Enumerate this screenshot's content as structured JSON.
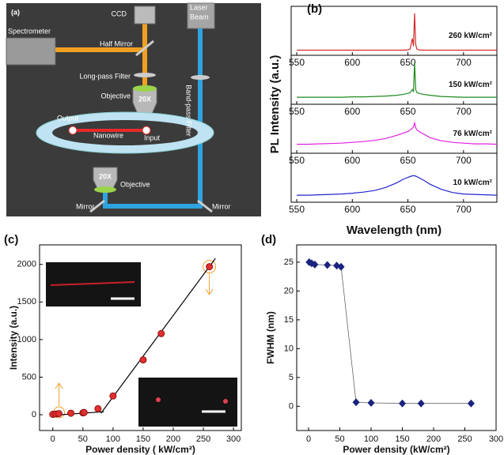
{
  "diagram": {
    "panel_label": "(a)",
    "labels": [
      "CCD",
      "Laser",
      "Beam",
      "Spectrometer",
      "Half Mirror",
      "Long-pass Filter",
      "Objective",
      "20X",
      "Output",
      "Nanowire",
      "Input",
      "Band-pass Filter",
      "20X",
      "Objective",
      "Mirror",
      "Mirror"
    ]
  },
  "chart_data": [
    {
      "type": "ridgeline",
      "panel_label": "(b)",
      "ylabel": "PL Intensity (a.u.)",
      "xlabel": "Wavelength (nm)",
      "x": [
        550,
        560,
        570,
        580,
        590,
        600,
        610,
        620,
        630,
        640,
        645,
        650,
        652,
        654,
        655,
        656,
        657,
        658,
        660,
        665,
        670,
        680,
        690,
        700,
        710,
        720,
        730
      ],
      "xlim": [
        545,
        730
      ],
      "xticks": [
        550,
        600,
        650,
        700
      ],
      "ylim": [
        0,
        1.1
      ],
      "series": [
        {
          "name": "260 kW/cm²",
          "color": "#d42a2a",
          "values": [
            0.05,
            0.05,
            0.05,
            0.05,
            0.05,
            0.05,
            0.05,
            0.05,
            0.05,
            0.05,
            0.05,
            0.06,
            0.08,
            0.35,
            0.15,
            1.0,
            0.2,
            0.08,
            0.06,
            0.05,
            0.05,
            0.05,
            0.05,
            0.05,
            0.05,
            0.05,
            0.05
          ]
        },
        {
          "name": "150 kW/cm²",
          "color": "#1e8a1e",
          "values": [
            0.1,
            0.1,
            0.1,
            0.1,
            0.1,
            0.11,
            0.11,
            0.12,
            0.13,
            0.15,
            0.17,
            0.2,
            0.22,
            0.3,
            0.25,
            1.0,
            0.3,
            0.22,
            0.2,
            0.17,
            0.15,
            0.12,
            0.11,
            0.1,
            0.1,
            0.1,
            0.1
          ]
        },
        {
          "name": "76 kW/cm²",
          "color": "#e020e0",
          "values": [
            0.15,
            0.15,
            0.16,
            0.17,
            0.18,
            0.2,
            0.22,
            0.25,
            0.3,
            0.38,
            0.43,
            0.48,
            0.52,
            0.56,
            0.6,
            0.7,
            0.58,
            0.52,
            0.48,
            0.4,
            0.32,
            0.24,
            0.2,
            0.18,
            0.16,
            0.16,
            0.15
          ]
        },
        {
          "name": "10 kW/cm²",
          "color": "#2424cc",
          "values": [
            0.1,
            0.1,
            0.11,
            0.12,
            0.13,
            0.15,
            0.18,
            0.22,
            0.3,
            0.42,
            0.5,
            0.56,
            0.58,
            0.6,
            0.6,
            0.6,
            0.59,
            0.58,
            0.55,
            0.47,
            0.38,
            0.25,
            0.17,
            0.13,
            0.12,
            0.11,
            0.1
          ]
        }
      ]
    },
    {
      "type": "scatter",
      "panel_label": "(c)",
      "ylabel": "Intensity (a.u.)",
      "xlabel": "Power density ( kW/cm²)",
      "x": [
        0,
        5,
        10,
        30,
        50,
        52,
        75,
        100,
        150,
        180,
        260
      ],
      "values": [
        5,
        10,
        15,
        20,
        25,
        30,
        80,
        250,
        730,
        1080,
        1970
      ],
      "color": "#e03030",
      "fit_lines": [
        {
          "x": [
            -5,
            85
          ],
          "y": [
            -10,
            40
          ]
        },
        {
          "x": [
            80,
            270
          ],
          "y": [
            20,
            2080
          ]
        }
      ],
      "xlim": [
        -22,
        313
      ],
      "xticks": [
        0,
        50,
        100,
        150,
        200,
        250,
        300
      ],
      "ylim": [
        -210,
        2260
      ],
      "yticks": [
        0,
        500,
        1000,
        1500,
        2000
      ]
    },
    {
      "type": "line",
      "panel_label": "(d)",
      "ylabel": "FWHM (nm)",
      "xlabel": "Power density (kW/cm²)",
      "x": [
        1,
        5,
        10,
        30,
        45,
        52,
        76,
        100,
        150,
        180,
        260
      ],
      "values": [
        25,
        24.8,
        24.6,
        24.5,
        24.4,
        24.2,
        0.7,
        0.6,
        0.5,
        0.5,
        0.5
      ],
      "color": "#1a237e",
      "xlim": [
        -19,
        300
      ],
      "xticks": [
        0,
        50,
        100,
        150,
        200,
        250,
        300
      ],
      "ylim": [
        -4.2,
        28
      ],
      "yticks": [
        0,
        5,
        10,
        15,
        20,
        25
      ]
    }
  ]
}
